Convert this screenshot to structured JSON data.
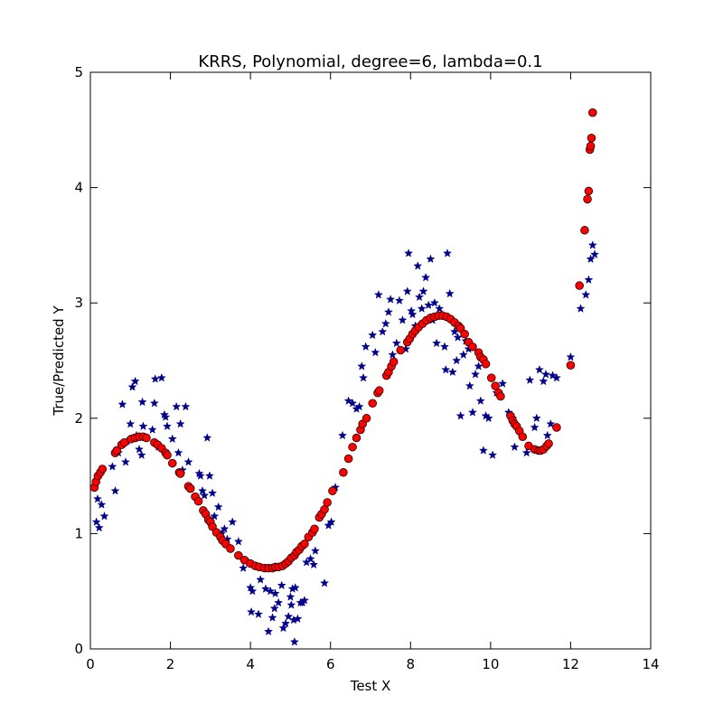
{
  "chart_data": {
    "type": "scatter",
    "title": "KRRS, Polynomial, degree=6, lambda=0.1",
    "xlabel": "Test X",
    "ylabel": "True/Predicted Y",
    "xlim": [
      0,
      14
    ],
    "ylim": [
      0,
      5
    ],
    "xticks": [
      "0",
      "2",
      "4",
      "6",
      "8",
      "10",
      "12",
      "14"
    ],
    "yticks": [
      "0",
      "1",
      "2",
      "3",
      "4",
      "5"
    ],
    "grid": false,
    "colors": {
      "true_marker": "#00008b",
      "pred_marker": "#ff0000",
      "pred_edge": "#000000"
    },
    "series": [
      {
        "marker": "star",
        "points": [
          [
            0.15,
            1.1
          ],
          [
            0.18,
            1.3
          ],
          [
            0.22,
            1.05
          ],
          [
            0.28,
            1.25
          ],
          [
            0.35,
            1.15
          ],
          [
            0.55,
            1.58
          ],
          [
            0.62,
            1.37
          ],
          [
            0.7,
            1.7
          ],
          [
            0.78,
            1.77
          ],
          [
            0.8,
            2.12
          ],
          [
            0.88,
            1.62
          ],
          [
            0.92,
            1.8
          ],
          [
            1.0,
            1.95
          ],
          [
            1.05,
            2.27
          ],
          [
            1.12,
            2.32
          ],
          [
            1.15,
            1.85
          ],
          [
            1.22,
            1.73
          ],
          [
            1.28,
            1.68
          ],
          [
            1.3,
            2.14
          ],
          [
            1.32,
            1.93
          ],
          [
            1.55,
            1.9
          ],
          [
            1.6,
            2.13
          ],
          [
            1.62,
            2.34
          ],
          [
            1.7,
            1.75
          ],
          [
            1.78,
            2.35
          ],
          [
            1.85,
            2.03
          ],
          [
            1.88,
            2.01
          ],
          [
            1.92,
            1.93
          ],
          [
            2.05,
            1.82
          ],
          [
            2.15,
            2.1
          ],
          [
            2.2,
            1.7
          ],
          [
            2.25,
            1.95
          ],
          [
            2.3,
            1.55
          ],
          [
            2.38,
            2.1
          ],
          [
            2.45,
            1.62
          ],
          [
            2.5,
            1.4
          ],
          [
            2.72,
            1.52
          ],
          [
            2.75,
            1.5
          ],
          [
            2.8,
            1.37
          ],
          [
            2.85,
            1.33
          ],
          [
            2.92,
            1.83
          ],
          [
            2.98,
            1.5
          ],
          [
            3.05,
            1.35
          ],
          [
            3.1,
            1.15
          ],
          [
            3.2,
            1.23
          ],
          [
            3.28,
            1.0
          ],
          [
            3.35,
            1.04
          ],
          [
            3.42,
            0.95
          ],
          [
            3.55,
            1.1
          ],
          [
            3.7,
            0.93
          ],
          [
            3.82,
            0.7
          ],
          [
            3.95,
            0.75
          ],
          [
            4.0,
            0.53
          ],
          [
            4.02,
            0.32
          ],
          [
            4.05,
            0.5
          ],
          [
            4.2,
            0.3
          ],
          [
            4.25,
            0.6
          ],
          [
            4.38,
            0.52
          ],
          [
            4.45,
            0.15
          ],
          [
            4.5,
            0.5
          ],
          [
            4.55,
            0.27
          ],
          [
            4.6,
            0.35
          ],
          [
            4.62,
            0.48
          ],
          [
            4.7,
            0.4
          ],
          [
            4.78,
            0.55
          ],
          [
            4.82,
            0.18
          ],
          [
            4.88,
            0.22
          ],
          [
            4.95,
            0.28
          ],
          [
            5.0,
            0.45
          ],
          [
            5.02,
            0.38
          ],
          [
            5.05,
            0.52
          ],
          [
            5.08,
            0.25
          ],
          [
            5.1,
            0.06
          ],
          [
            5.12,
            0.53
          ],
          [
            5.18,
            0.26
          ],
          [
            5.25,
            0.4
          ],
          [
            5.3,
            0.4
          ],
          [
            5.35,
            0.42
          ],
          [
            5.4,
            0.75
          ],
          [
            5.5,
            0.78
          ],
          [
            5.58,
            0.73
          ],
          [
            5.62,
            0.85
          ],
          [
            5.85,
            0.57
          ],
          [
            5.95,
            1.07
          ],
          [
            6.02,
            1.1
          ],
          [
            6.12,
            1.4
          ],
          [
            6.3,
            1.85
          ],
          [
            6.45,
            2.15
          ],
          [
            6.55,
            2.13
          ],
          [
            6.65,
            2.08
          ],
          [
            6.72,
            2.1
          ],
          [
            6.78,
            2.45
          ],
          [
            6.82,
            2.35
          ],
          [
            6.88,
            2.62
          ],
          [
            7.05,
            2.72
          ],
          [
            7.12,
            2.57
          ],
          [
            7.2,
            3.07
          ],
          [
            7.3,
            2.75
          ],
          [
            7.38,
            2.82
          ],
          [
            7.45,
            2.92
          ],
          [
            7.5,
            3.03
          ],
          [
            7.55,
            2.55
          ],
          [
            7.65,
            2.65
          ],
          [
            7.72,
            3.02
          ],
          [
            7.8,
            2.85
          ],
          [
            7.88,
            2.6
          ],
          [
            7.92,
            3.1
          ],
          [
            7.95,
            3.43
          ],
          [
            8.02,
            2.93
          ],
          [
            8.05,
            2.9
          ],
          [
            8.12,
            2.8
          ],
          [
            8.18,
            3.32
          ],
          [
            8.22,
            3.05
          ],
          [
            8.28,
            2.95
          ],
          [
            8.32,
            3.1
          ],
          [
            8.38,
            3.22
          ],
          [
            8.45,
            2.98
          ],
          [
            8.5,
            3.38
          ],
          [
            8.55,
            2.85
          ],
          [
            8.6,
            3.0
          ],
          [
            8.65,
            2.65
          ],
          [
            8.72,
            2.95
          ],
          [
            8.78,
            2.9
          ],
          [
            8.85,
            2.62
          ],
          [
            8.88,
            2.42
          ],
          [
            8.92,
            3.43
          ],
          [
            8.98,
            3.08
          ],
          [
            9.05,
            2.4
          ],
          [
            9.1,
            2.75
          ],
          [
            9.15,
            2.5
          ],
          [
            9.18,
            2.7
          ],
          [
            9.25,
            2.02
          ],
          [
            9.32,
            2.55
          ],
          [
            9.38,
            2.67
          ],
          [
            9.45,
            2.6
          ],
          [
            9.48,
            2.28
          ],
          [
            9.55,
            2.05
          ],
          [
            9.62,
            2.38
          ],
          [
            9.7,
            2.45
          ],
          [
            9.75,
            2.15
          ],
          [
            9.82,
            1.72
          ],
          [
            9.88,
            2.02
          ],
          [
            9.95,
            2.0
          ],
          [
            10.05,
            1.68
          ],
          [
            10.15,
            2.22
          ],
          [
            10.3,
            2.3
          ],
          [
            10.45,
            2.05
          ],
          [
            10.55,
            2.0
          ],
          [
            10.6,
            1.75
          ],
          [
            10.9,
            1.7
          ],
          [
            10.98,
            2.33
          ],
          [
            11.1,
            1.92
          ],
          [
            11.15,
            2.0
          ],
          [
            11.22,
            2.42
          ],
          [
            11.32,
            2.32
          ],
          [
            11.38,
            2.38
          ],
          [
            11.42,
            1.85
          ],
          [
            11.5,
            1.95
          ],
          [
            11.55,
            2.37
          ],
          [
            11.65,
            2.35
          ],
          [
            12.0,
            2.53
          ],
          [
            12.25,
            2.95
          ],
          [
            12.38,
            3.07
          ],
          [
            12.45,
            3.2
          ],
          [
            12.5,
            3.38
          ],
          [
            12.55,
            3.5
          ],
          [
            12.6,
            3.42
          ]
        ]
      },
      {
        "marker": "circle",
        "points": [
          [
            0.1,
            1.4
          ],
          [
            0.14,
            1.45
          ],
          [
            0.19,
            1.5
          ],
          [
            0.25,
            1.53
          ],
          [
            0.3,
            1.56
          ],
          [
            0.62,
            1.7
          ],
          [
            0.66,
            1.72
          ],
          [
            0.78,
            1.77
          ],
          [
            0.85,
            1.79
          ],
          [
            1.02,
            1.82
          ],
          [
            1.12,
            1.83
          ],
          [
            1.22,
            1.84
          ],
          [
            1.32,
            1.84
          ],
          [
            1.4,
            1.83
          ],
          [
            1.6,
            1.79
          ],
          [
            1.68,
            1.77
          ],
          [
            1.78,
            1.74
          ],
          [
            1.88,
            1.7
          ],
          [
            1.92,
            1.68
          ],
          [
            2.05,
            1.61
          ],
          [
            2.22,
            1.53
          ],
          [
            2.25,
            1.52
          ],
          [
            2.45,
            1.41
          ],
          [
            2.5,
            1.39
          ],
          [
            2.62,
            1.32
          ],
          [
            2.7,
            1.28
          ],
          [
            2.82,
            1.2
          ],
          [
            2.88,
            1.17
          ],
          [
            2.95,
            1.12
          ],
          [
            3.0,
            1.1
          ],
          [
            3.05,
            1.06
          ],
          [
            3.15,
            1.01
          ],
          [
            3.25,
            0.97
          ],
          [
            3.3,
            0.94
          ],
          [
            3.38,
            0.91
          ],
          [
            3.5,
            0.87
          ],
          [
            3.7,
            0.81
          ],
          [
            3.85,
            0.77
          ],
          [
            4.0,
            0.74
          ],
          [
            4.12,
            0.72
          ],
          [
            4.22,
            0.71
          ],
          [
            4.35,
            0.7
          ],
          [
            4.45,
            0.7
          ],
          [
            4.55,
            0.7
          ],
          [
            4.62,
            0.71
          ],
          [
            4.7,
            0.71
          ],
          [
            4.8,
            0.72
          ],
          [
            4.88,
            0.74
          ],
          [
            4.95,
            0.76
          ],
          [
            5.02,
            0.79
          ],
          [
            5.1,
            0.81
          ],
          [
            5.15,
            0.84
          ],
          [
            5.22,
            0.86
          ],
          [
            5.28,
            0.89
          ],
          [
            5.35,
            0.91
          ],
          [
            5.45,
            0.97
          ],
          [
            5.55,
            1.01
          ],
          [
            5.6,
            1.04
          ],
          [
            5.72,
            1.14
          ],
          [
            5.78,
            1.17
          ],
          [
            5.85,
            1.21
          ],
          [
            5.92,
            1.27
          ],
          [
            6.05,
            1.37
          ],
          [
            6.32,
            1.53
          ],
          [
            6.45,
            1.65
          ],
          [
            6.55,
            1.75
          ],
          [
            6.65,
            1.83
          ],
          [
            6.75,
            1.9
          ],
          [
            6.8,
            1.95
          ],
          [
            6.9,
            2.0
          ],
          [
            7.05,
            2.13
          ],
          [
            7.18,
            2.22
          ],
          [
            7.22,
            2.24
          ],
          [
            7.4,
            2.37
          ],
          [
            7.45,
            2.4
          ],
          [
            7.52,
            2.45
          ],
          [
            7.58,
            2.49
          ],
          [
            7.75,
            2.59
          ],
          [
            7.92,
            2.66
          ],
          [
            7.98,
            2.69
          ],
          [
            8.05,
            2.73
          ],
          [
            8.12,
            2.76
          ],
          [
            8.2,
            2.79
          ],
          [
            8.3,
            2.82
          ],
          [
            8.4,
            2.85
          ],
          [
            8.5,
            2.87
          ],
          [
            8.6,
            2.88
          ],
          [
            8.7,
            2.89
          ],
          [
            8.8,
            2.89
          ],
          [
            8.9,
            2.88
          ],
          [
            9.0,
            2.86
          ],
          [
            9.1,
            2.83
          ],
          [
            9.2,
            2.8
          ],
          [
            9.25,
            2.78
          ],
          [
            9.35,
            2.73
          ],
          [
            9.45,
            2.66
          ],
          [
            9.55,
            2.62
          ],
          [
            9.7,
            2.57
          ],
          [
            9.75,
            2.53
          ],
          [
            9.82,
            2.51
          ],
          [
            9.88,
            2.47
          ],
          [
            10.02,
            2.35
          ],
          [
            10.12,
            2.28
          ],
          [
            10.2,
            2.22
          ],
          [
            10.25,
            2.19
          ],
          [
            10.5,
            2.02
          ],
          [
            10.55,
            1.98
          ],
          [
            10.6,
            1.95
          ],
          [
            10.65,
            1.93
          ],
          [
            10.72,
            1.89
          ],
          [
            10.8,
            1.84
          ],
          [
            10.95,
            1.76
          ],
          [
            11.1,
            1.73
          ],
          [
            11.2,
            1.72
          ],
          [
            11.25,
            1.72
          ],
          [
            11.32,
            1.73
          ],
          [
            11.4,
            1.76
          ],
          [
            11.45,
            1.78
          ],
          [
            11.65,
            1.92
          ],
          [
            12.0,
            2.46
          ],
          [
            12.22,
            3.15
          ],
          [
            12.35,
            3.63
          ],
          [
            12.42,
            3.9
          ],
          [
            12.45,
            3.97
          ],
          [
            12.48,
            4.33
          ],
          [
            12.5,
            4.36
          ],
          [
            12.52,
            4.43
          ],
          [
            12.55,
            4.65
          ]
        ]
      }
    ]
  }
}
